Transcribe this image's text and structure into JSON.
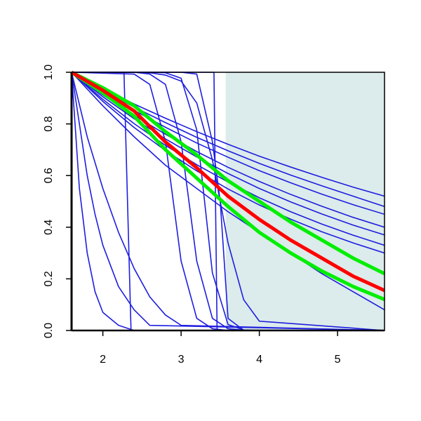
{
  "chart_data": {
    "type": "line",
    "xlim": [
      1.6,
      5.6
    ],
    "ylim": [
      0,
      1
    ],
    "xticks": [
      2,
      3,
      4,
      5
    ],
    "yticks": [
      {
        "value": 0,
        "label": "0.0"
      },
      {
        "value": 0.2,
        "label": "0.2"
      },
      {
        "value": 0.4,
        "label": "0.4"
      },
      {
        "value": 0.6,
        "label": "0.6"
      },
      {
        "value": 0.8,
        "label": "0.8"
      },
      {
        "value": 1,
        "label": "1.0"
      }
    ],
    "shaded_region": {
      "xlim": [
        3.57,
        5.6
      ],
      "color": "#dcebeb"
    },
    "x": [
      1.6,
      2.0,
      2.4,
      2.8,
      3.2,
      3.6,
      4.0,
      4.4,
      4.8,
      5.2,
      5.6
    ],
    "series": [
      {
        "color": "#1e1ee0",
        "values": [
          1,
          0.937,
          0.877,
          0.822,
          0.77,
          0.721,
          0.675,
          0.633,
          0.593,
          0.555,
          0.52
        ]
      },
      {
        "color": "#1e1ee0",
        "values": [
          1,
          0.93,
          0.865,
          0.805,
          0.748,
          0.696,
          0.647,
          0.602,
          0.56,
          0.52,
          0.48
        ]
      },
      {
        "color": "#1e1ee0",
        "values": [
          1,
          0.923,
          0.852,
          0.787,
          0.726,
          0.671,
          0.619,
          0.572,
          0.528,
          0.487,
          0.45
        ]
      },
      {
        "color": "#1e1ee0",
        "values": [
          1,
          0.912,
          0.833,
          0.76,
          0.693,
          0.632,
          0.577,
          0.527,
          0.481,
          0.438,
          0.4
        ]
      },
      {
        "color": "#1e1ee0",
        "values": [
          1,
          0.905,
          0.82,
          0.742,
          0.672,
          0.608,
          0.55,
          0.498,
          0.451,
          0.408,
          0.37
        ]
      },
      {
        "color": "#1e1ee0",
        "values": [
          1,
          0.895,
          0.801,
          0.717,
          0.642,
          0.575,
          0.514,
          0.46,
          0.412,
          0.369,
          0.33
        ]
      },
      {
        "color": "#1e1ee0",
        "values": [
          1,
          0.887,
          0.786,
          0.697,
          0.618,
          0.548,
          0.486,
          0.431,
          0.382,
          0.339,
          0.3
        ]
      },
      {
        "color": "#1e1ee0",
        "values": [
          1,
          0.87,
          0.75,
          0.64,
          0.55,
          0.46,
          0.38,
          0.3,
          0.22,
          0.15,
          0.08
        ]
      },
      {
        "color": "#1e1ee0",
        "x": [
          1.6,
          1.7,
          1.8,
          1.9,
          2.0,
          2.2,
          2.4,
          5.6
        ],
        "values": [
          1,
          0.55,
          0.3,
          0.15,
          0.07,
          0.02,
          0,
          0
        ]
      },
      {
        "color": "#1e1ee0",
        "x": [
          1.6,
          1.7,
          1.8,
          1.9,
          2.0,
          2.2,
          2.4,
          2.6,
          5.6
        ],
        "values": [
          1,
          0.8,
          0.6,
          0.45,
          0.33,
          0.17,
          0.08,
          0.02,
          0
        ]
      },
      {
        "color": "#1e1ee0",
        "x": [
          1.6,
          1.8,
          2.0,
          2.2,
          2.4,
          2.6,
          2.8,
          3.0,
          5.6
        ],
        "values": [
          1,
          0.75,
          0.55,
          0.38,
          0.24,
          0.13,
          0.06,
          0.02,
          0
        ]
      },
      {
        "color": "#1e1ee0",
        "x": [
          1.6,
          2.27,
          2.36,
          5.6
        ],
        "values": [
          1,
          1,
          0,
          0
        ]
      },
      {
        "color": "#1e1ee0",
        "x": [
          1.6,
          3.42,
          3.46,
          5.6
        ],
        "values": [
          1,
          1,
          0,
          0
        ]
      },
      {
        "color": "#1e1ee0",
        "x": [
          1.6,
          2.4,
          2.6,
          2.8,
          3.0,
          3.2,
          3.4,
          3.6,
          3.8,
          4.0,
          5.6
        ],
        "values": [
          1,
          0.993,
          0.953,
          0.731,
          0.269,
          0.047,
          0.007,
          0,
          0,
          0,
          0
        ]
      },
      {
        "color": "#1e1ee0",
        "x": [
          1.6,
          2.4,
          2.6,
          2.8,
          3.0,
          3.2,
          3.4,
          3.6,
          3.8,
          4.0,
          5.6
        ],
        "values": [
          1,
          1,
          0.993,
          0.953,
          0.731,
          0.269,
          0.047,
          0.007,
          0.001,
          0,
          0
        ]
      },
      {
        "color": "#1e1ee0",
        "x": [
          1.6,
          2.4,
          2.6,
          2.8,
          3.0,
          3.2,
          3.4,
          3.6,
          3.8,
          4.0,
          5.6
        ],
        "values": [
          1,
          1,
          1,
          0.998,
          0.977,
          0.777,
          0.223,
          0.023,
          0.002,
          0,
          0
        ]
      },
      {
        "color": "#1e1ee0",
        "x": [
          1.6,
          2.4,
          2.6,
          2.8,
          3.0,
          3.2,
          3.4,
          3.5,
          3.6,
          3.8,
          5.6
        ],
        "values": [
          1,
          1,
          1,
          1,
          1,
          0.993,
          0.731,
          0.5,
          0.047,
          0.001,
          0
        ]
      },
      {
        "color": "#1e1ee0",
        "x": [
          1.6,
          2.4,
          2.6,
          2.8,
          3.0,
          3.2,
          3.4,
          3.6,
          3.8,
          4.0,
          5.6
        ],
        "values": [
          1,
          1,
          0.998,
          0.989,
          0.966,
          0.881,
          0.661,
          0.339,
          0.119,
          0.036,
          0
        ]
      },
      {
        "color": "#00ee00",
        "values": [
          1,
          0.94,
          0.87,
          0.77,
          0.68,
          0.58,
          0.5,
          0.42,
          0.35,
          0.28,
          0.22
        ]
      },
      {
        "color": "#00ee00",
        "values": [
          1,
          0.92,
          0.83,
          0.7,
          0.59,
          0.48,
          0.38,
          0.3,
          0.23,
          0.17,
          0.12
        ]
      },
      {
        "color": "#ff0000",
        "values": [
          1,
          0.93,
          0.85,
          0.73,
          0.63,
          0.52,
          0.43,
          0.35,
          0.28,
          0.21,
          0.155
        ]
      }
    ]
  }
}
